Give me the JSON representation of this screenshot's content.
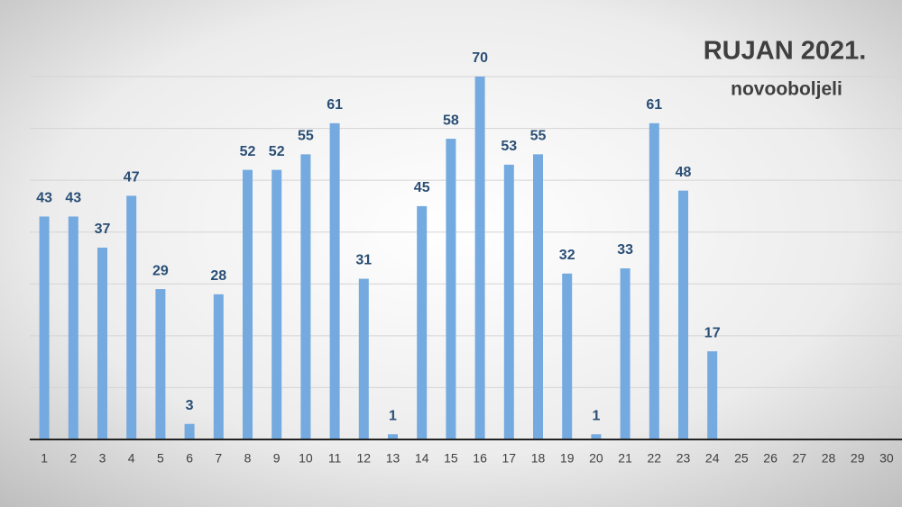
{
  "chart_data": {
    "type": "bar",
    "title": "RUJAN 2021.",
    "subtitle": "novooboljeli",
    "categories": [
      "1",
      "2",
      "3",
      "4",
      "5",
      "6",
      "7",
      "8",
      "9",
      "10",
      "11",
      "12",
      "13",
      "14",
      "15",
      "16",
      "17",
      "18",
      "19",
      "20",
      "21",
      "22",
      "23",
      "24",
      "25",
      "26",
      "27",
      "28",
      "29",
      "30"
    ],
    "values": [
      43,
      43,
      37,
      47,
      29,
      3,
      28,
      52,
      52,
      55,
      61,
      31,
      1,
      45,
      58,
      70,
      53,
      55,
      32,
      1,
      33,
      61,
      48,
      17,
      null,
      null,
      null,
      null,
      null,
      null
    ],
    "color": "#74aadf",
    "ylim": [
      0,
      70
    ],
    "yticks": [
      0,
      10,
      20,
      30,
      40,
      50,
      60,
      70
    ],
    "grid": true
  }
}
